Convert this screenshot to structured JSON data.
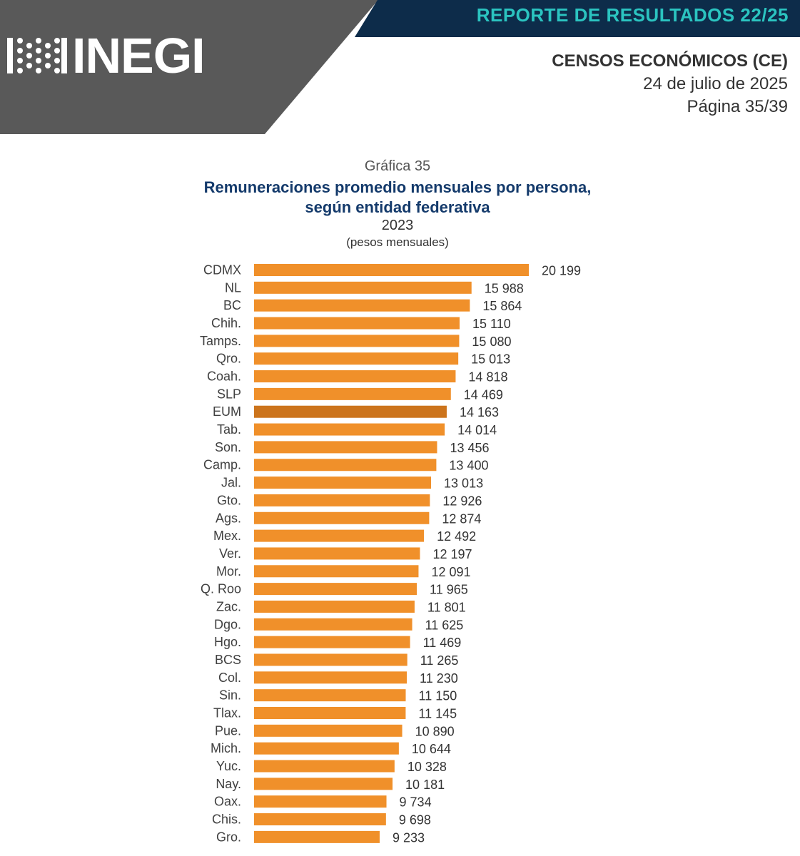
{
  "header": {
    "report_title": "REPORTE DE RESULTADOS 22/25",
    "logo_text": "INEGI",
    "org_line": "CENSOS ECONÓMICOS (CE)",
    "date": "24 de julio de 2025",
    "page": "Página 35/39",
    "colors": {
      "gray": "#595959",
      "navy": "#0d2c4a",
      "teal": "#2bc4c0"
    }
  },
  "chart_data": {
    "type": "bar",
    "orientation": "horizontal",
    "number": "Gráfica 35",
    "title_line1": "Remuneraciones promedio mensuales por persona,",
    "title_line2": "según entidad federativa",
    "year": "2023",
    "unit": "(pesos mensuales)",
    "categories": [
      "CDMX",
      "NL",
      "BC",
      "Chih.",
      "Tamps.",
      "Qro.",
      "Coah.",
      "SLP",
      "EUM",
      "Tab.",
      "Son.",
      "Camp.",
      "Jal.",
      "Gto.",
      "Ags.",
      "Mex.",
      "Ver.",
      "Mor.",
      "Q. Roo",
      "Zac.",
      "Dgo.",
      "Hgo.",
      "BCS",
      "Col.",
      "Sin.",
      "Tlax.",
      "Pue.",
      "Mich.",
      "Yuc.",
      "Nay.",
      "Oax.",
      "Chis.",
      "Gro."
    ],
    "values": [
      20199,
      15988,
      15864,
      15110,
      15080,
      15013,
      14818,
      14469,
      14163,
      14014,
      13456,
      13400,
      13013,
      12926,
      12874,
      12492,
      12197,
      12091,
      11965,
      11801,
      11625,
      11469,
      11265,
      11230,
      11150,
      11145,
      10890,
      10644,
      10328,
      10181,
      9734,
      9698,
      9233
    ],
    "value_labels": [
      "20 199",
      "15 988",
      "15 864",
      "15 110",
      "15 080",
      "15 013",
      "14 818",
      "14 469",
      "14 163",
      "14 014",
      "13 456",
      "13 400",
      "13 013",
      "12 926",
      "12 874",
      "12 492",
      "12 197",
      "12 091",
      "11 965",
      "11 801",
      "11 625",
      "11 469",
      "11 265",
      "11 230",
      "11 150",
      "11 145",
      "10 890",
      "10 644",
      "10 328",
      "10 181",
      "9 734",
      "9 698",
      "9 233"
    ],
    "highlight_category": "EUM",
    "bar_color": "#f0902a",
    "highlight_color": "#cc741c",
    "xlim": [
      0,
      20199
    ],
    "grid": false,
    "legend": "none"
  }
}
